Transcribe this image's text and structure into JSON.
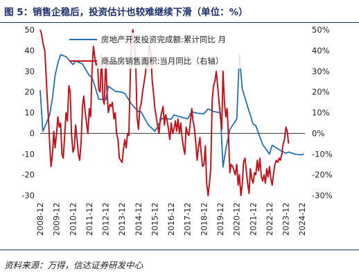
{
  "title": "图 5：销售企稳后，投资估计也较难继续下滑（单位：%）",
  "source": "资料来源：万得，信达证券研发中心",
  "chart_data": {
    "type": "line",
    "left_axis": {
      "ylim": [
        -30,
        50
      ],
      "ticks": [
        "-30",
        "-20",
        "-10",
        "0",
        "10",
        "20",
        "30",
        "40",
        "50"
      ]
    },
    "right_axis": {
      "ylim": [
        -30,
        50
      ],
      "ticks": [
        "-30%",
        "-20%",
        "-10%",
        "0%",
        "10%",
        "20%",
        "30%",
        "40%",
        "50%"
      ]
    },
    "x_ticks": [
      "2008-12",
      "2009-12",
      "2010-12",
      "2011-12",
      "2012-12",
      "2013-12",
      "2014-12",
      "2015-12",
      "2016-12",
      "2017-12",
      "2018-12",
      "2019-12",
      "2020-12",
      "2021-12",
      "2022-12",
      "2023-12",
      "2024-12"
    ],
    "grid": false,
    "legend_placement": "top-center",
    "series": [
      {
        "name": "房地产开发投资完成额:累计同比  月",
        "axis": "left",
        "color": "#1f6fb8",
        "points": [
          [
            2008.92,
            20.9
          ],
          [
            2009.08,
            1.0
          ],
          [
            2009.25,
            4.0
          ],
          [
            2009.5,
            9.0
          ],
          [
            2009.67,
            17.0
          ],
          [
            2009.83,
            28.0
          ],
          [
            2010.0,
            34.0
          ],
          [
            2010.17,
            38.0
          ],
          [
            2010.5,
            37.0
          ],
          [
            2010.92,
            33.2
          ],
          [
            2011.08,
            35.0
          ],
          [
            2011.5,
            33.5
          ],
          [
            2011.92,
            27.9
          ],
          [
            2012.08,
            27.0
          ],
          [
            2012.25,
            23.0
          ],
          [
            2012.5,
            16.5
          ],
          [
            2012.92,
            16.2
          ],
          [
            2013.08,
            22.8
          ],
          [
            2013.5,
            20.3
          ],
          [
            2013.92,
            19.8
          ],
          [
            2014.08,
            19.3
          ],
          [
            2014.5,
            14.1
          ],
          [
            2014.92,
            10.5
          ],
          [
            2015.08,
            10.4
          ],
          [
            2015.5,
            4.3
          ],
          [
            2015.92,
            1.0
          ],
          [
            2016.08,
            3.0
          ],
          [
            2016.33,
            7.2
          ],
          [
            2016.92,
            6.9
          ],
          [
            2017.08,
            8.9
          ],
          [
            2017.5,
            7.9
          ],
          [
            2017.92,
            7.0
          ],
          [
            2018.17,
            10.4
          ],
          [
            2018.5,
            9.7
          ],
          [
            2018.92,
            9.5
          ],
          [
            2019.17,
            11.8
          ],
          [
            2019.5,
            10.6
          ],
          [
            2019.92,
            9.9
          ],
          [
            2020.08,
            -16.3
          ],
          [
            2020.25,
            -7.7
          ],
          [
            2020.5,
            1.9
          ],
          [
            2020.92,
            7.0
          ],
          [
            2021.08,
            38.3
          ],
          [
            2021.25,
            21.6
          ],
          [
            2021.5,
            15.0
          ],
          [
            2021.92,
            4.4
          ],
          [
            2022.08,
            3.7
          ],
          [
            2022.5,
            -5.4
          ],
          [
            2022.92,
            -10.0
          ],
          [
            2023.08,
            -5.7
          ],
          [
            2023.5,
            -7.9
          ],
          [
            2023.92,
            -9.6
          ],
          [
            2024.08,
            -9.0
          ],
          [
            2024.5,
            -10.1
          ],
          [
            2024.92,
            -10.4
          ],
          [
            2025.0,
            -9.8
          ]
        ]
      },
      {
        "name": "商品房销售面积:当月同比（右轴）",
        "axis": "right",
        "color": "#c0141c",
        "points": [
          [
            2008.92,
            50.0
          ],
          [
            2009.0,
            48.0
          ],
          [
            2009.1,
            43.0
          ],
          [
            2009.2,
            40.0
          ],
          [
            2009.25,
            33.0
          ],
          [
            2009.33,
            20.0
          ],
          [
            2009.42,
            8.0
          ],
          [
            2009.5,
            -5.0
          ],
          [
            2009.58,
            -16.0
          ],
          [
            2009.67,
            -10.0
          ],
          [
            2009.75,
            1.0
          ],
          [
            2009.83,
            -7.0
          ],
          [
            2009.92,
            0.0
          ],
          [
            2010.0,
            8.0
          ],
          [
            2010.08,
            3.0
          ],
          [
            2010.17,
            5.0
          ],
          [
            2010.25,
            -10.0
          ],
          [
            2010.33,
            -12.0
          ],
          [
            2010.42,
            0.0
          ],
          [
            2010.5,
            10.0
          ],
          [
            2010.58,
            6.0
          ],
          [
            2010.67,
            23.0
          ],
          [
            2010.75,
            20.0
          ],
          [
            2010.83,
            0.0
          ],
          [
            2010.92,
            -9.0
          ],
          [
            2011.0,
            -7.0
          ],
          [
            2011.08,
            4.0
          ],
          [
            2011.17,
            -3.0
          ],
          [
            2011.25,
            -10.0
          ],
          [
            2011.33,
            -13.0
          ],
          [
            2011.42,
            -4.0
          ],
          [
            2011.5,
            13.0
          ],
          [
            2011.58,
            18.0
          ],
          [
            2011.67,
            10.0
          ],
          [
            2011.75,
            5.0
          ],
          [
            2011.83,
            0.0
          ],
          [
            2011.92,
            12.0
          ],
          [
            2012.0,
            8.0
          ],
          [
            2012.08,
            30.0
          ],
          [
            2012.17,
            42.0
          ],
          [
            2012.25,
            37.0
          ],
          [
            2012.33,
            33.0
          ],
          [
            2012.42,
            34.0
          ],
          [
            2012.5,
            21.0
          ],
          [
            2012.58,
            20.0
          ],
          [
            2012.67,
            38.0
          ],
          [
            2012.75,
            17.0
          ],
          [
            2012.83,
            14.0
          ],
          [
            2012.92,
            36.0
          ],
          [
            2013.0,
            20.0
          ],
          [
            2013.08,
            10.0
          ],
          [
            2013.17,
            14.0
          ],
          [
            2013.25,
            13.0
          ],
          [
            2013.33,
            15.0
          ],
          [
            2013.42,
            7.0
          ],
          [
            2013.5,
            10.0
          ],
          [
            2013.58,
            0.0
          ],
          [
            2013.67,
            -3.0
          ],
          [
            2013.75,
            -12.0
          ],
          [
            2013.83,
            -13.0
          ],
          [
            2013.92,
            -14.0
          ],
          [
            2014.0,
            -8.0
          ],
          [
            2014.08,
            -3.0
          ],
          [
            2014.17,
            -7.0
          ],
          [
            2014.25,
            0.0
          ],
          [
            2014.33,
            -1.0
          ],
          [
            2014.42,
            28.0
          ],
          [
            2014.5,
            45.0
          ],
          [
            2014.58,
            50.0
          ],
          [
            2014.67,
            43.0
          ],
          [
            2014.75,
            35.0
          ],
          [
            2014.83,
            8.0
          ],
          [
            2014.92,
            2.0
          ],
          [
            2015.0,
            12.0
          ],
          [
            2015.08,
            14.0
          ],
          [
            2015.17,
            20.0
          ],
          [
            2015.25,
            24.0
          ],
          [
            2015.33,
            28.0
          ],
          [
            2015.42,
            35.0
          ],
          [
            2015.5,
            32.0
          ],
          [
            2015.58,
            43.0
          ],
          [
            2015.67,
            40.0
          ],
          [
            2015.75,
            26.0
          ],
          [
            2015.83,
            20.0
          ],
          [
            2015.92,
            12.0
          ],
          [
            2016.0,
            8.0
          ],
          [
            2016.08,
            4.0
          ],
          [
            2016.17,
            0.0
          ],
          [
            2016.25,
            7.0
          ],
          [
            2016.33,
            10.0
          ],
          [
            2016.42,
            13.0
          ],
          [
            2016.5,
            4.0
          ],
          [
            2016.58,
            9.0
          ],
          [
            2016.67,
            6.0
          ],
          [
            2016.75,
            2.0
          ],
          [
            2016.83,
            -3.0
          ],
          [
            2016.92,
            5.0
          ],
          [
            2017.0,
            0.0
          ],
          [
            2017.08,
            2.0
          ],
          [
            2017.17,
            6.0
          ],
          [
            2017.25,
            1.0
          ],
          [
            2017.33,
            7.0
          ],
          [
            2017.42,
            0.0
          ],
          [
            2017.5,
            5.0
          ],
          [
            2017.58,
            -2.0
          ],
          [
            2017.67,
            -7.0
          ],
          [
            2017.75,
            -10.0
          ],
          [
            2017.83,
            3.0
          ],
          [
            2017.92,
            0.0
          ],
          [
            2018.0,
            -1.0
          ],
          [
            2018.08,
            5.0
          ],
          [
            2018.17,
            12.0
          ],
          [
            2018.25,
            6.0
          ],
          [
            2018.33,
            3.0
          ],
          [
            2018.42,
            -5.0
          ],
          [
            2018.5,
            -13.0
          ],
          [
            2018.58,
            -7.0
          ],
          [
            2018.67,
            -2.0
          ],
          [
            2018.75,
            -10.0
          ],
          [
            2018.83,
            -16.0
          ],
          [
            2018.92,
            -15.0
          ],
          [
            2019.0,
            -6.0
          ],
          [
            2019.08,
            -24.0
          ],
          [
            2019.17,
            -31.0
          ],
          [
            2019.25,
            -24.0
          ],
          [
            2019.33,
            -17.0
          ],
          [
            2019.42,
            16.0
          ],
          [
            2019.5,
            23.0
          ],
          [
            2019.58,
            25.0
          ],
          [
            2019.67,
            30.0
          ],
          [
            2019.75,
            23.0
          ],
          [
            2019.83,
            16.0
          ],
          [
            2019.92,
            8.0
          ],
          [
            2020.0,
            2.0
          ],
          [
            2020.08,
            30.0
          ],
          [
            2020.17,
            15.0
          ],
          [
            2020.25,
            8.0
          ],
          [
            2020.33,
            12.0
          ],
          [
            2020.42,
            -2.0
          ],
          [
            2020.5,
            -19.0
          ],
          [
            2020.58,
            -15.0
          ],
          [
            2020.67,
            -16.0
          ],
          [
            2020.75,
            -18.0
          ],
          [
            2020.83,
            -20.0
          ],
          [
            2020.92,
            -15.0
          ],
          [
            2021.0,
            -25.0
          ],
          [
            2021.08,
            -20.0
          ],
          [
            2021.17,
            -30.0
          ],
          [
            2021.25,
            -25.0
          ],
          [
            2021.33,
            -14.0
          ],
          [
            2021.42,
            -12.0
          ],
          [
            2021.5,
            -18.0
          ],
          [
            2021.58,
            -24.0
          ],
          [
            2021.67,
            -29.0
          ],
          [
            2021.75,
            -17.0
          ],
          [
            2021.83,
            -22.0
          ],
          [
            2021.92,
            -24.0
          ],
          [
            2022.0,
            -19.0
          ],
          [
            2022.08,
            -20.0
          ],
          [
            2022.17,
            -13.0
          ],
          [
            2022.25,
            -18.0
          ],
          [
            2022.33,
            -12.0
          ],
          [
            2022.42,
            -21.0
          ],
          [
            2022.5,
            -23.0
          ],
          [
            2022.58,
            -20.0
          ],
          [
            2022.67,
            -24.0
          ],
          [
            2022.75,
            -17.0
          ],
          [
            2022.83,
            -21.0
          ],
          [
            2022.92,
            -16.0
          ],
          [
            2023.0,
            -22.0
          ],
          [
            2023.08,
            -25.0
          ],
          [
            2023.17,
            -19.0
          ],
          [
            2023.25,
            -15.0
          ],
          [
            2023.33,
            -13.0
          ],
          [
            2023.42,
            -14.0
          ],
          [
            2023.5,
            -12.0
          ],
          [
            2023.58,
            -13.0
          ],
          [
            2023.67,
            -10.0
          ],
          [
            2023.75,
            -5.0
          ],
          [
            2023.83,
            -3.0
          ],
          [
            2023.92,
            3.0
          ],
          [
            2024.0,
            1.0
          ],
          [
            2024.08,
            -5.0
          ]
        ]
      }
    ]
  }
}
